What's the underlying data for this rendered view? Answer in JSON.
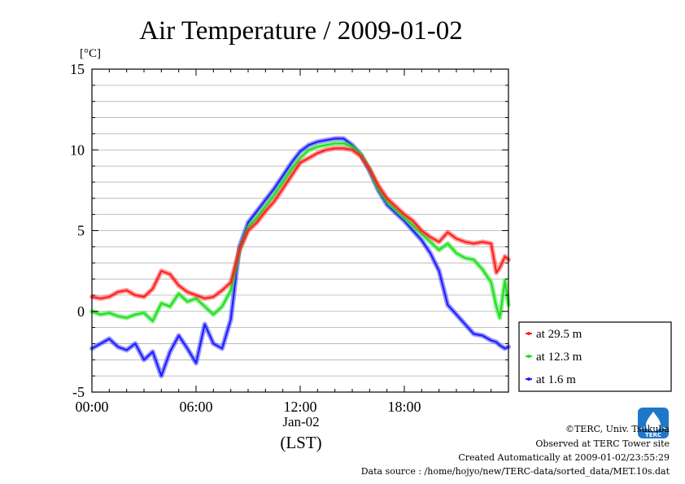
{
  "colors": {
    "red": "#ff2020",
    "green": "#20e020",
    "blue": "#2020ff",
    "grid": "#b0b0b0",
    "logo": "#1e78c8"
  },
  "chart_data": {
    "type": "line",
    "title": "Air Temperature / 2009-01-02",
    "ylabel": "[°C]",
    "xlabel": "(LST)",
    "date_label": "Jan-02",
    "ylim": [
      -5,
      15
    ],
    "xlim": [
      0,
      24
    ],
    "y_ticks": [
      -5,
      0,
      5,
      10,
      15
    ],
    "y_tick_labels": [
      "-5",
      "0",
      "5",
      "10",
      "15"
    ],
    "x_ticks": [
      0,
      6,
      12,
      18
    ],
    "x_tick_labels": [
      "00:00",
      "06:00",
      "12:00",
      "18:00"
    ],
    "grid": true,
    "legend_position": "right",
    "series": [
      {
        "name": "at 29.5 m",
        "color": "#ff2020",
        "x": [
          0,
          0.5,
          1,
          1.5,
          2,
          2.5,
          3,
          3.5,
          4,
          4.5,
          5,
          5.5,
          6,
          6.5,
          7,
          7.5,
          8,
          8.5,
          9,
          9.5,
          10,
          10.5,
          11,
          11.5,
          12,
          12.5,
          13,
          13.5,
          14,
          14.5,
          15,
          15.5,
          16,
          16.5,
          17,
          17.5,
          18,
          18.5,
          19,
          19.5,
          20,
          20.5,
          21,
          21.5,
          22,
          22.5,
          23,
          23.3,
          23.5,
          23.8,
          24
        ],
        "y": [
          0.9,
          0.8,
          0.9,
          1.2,
          1.3,
          1.0,
          0.9,
          1.4,
          2.5,
          2.3,
          1.6,
          1.2,
          1.0,
          0.8,
          0.9,
          1.3,
          1.8,
          3.8,
          5.0,
          5.5,
          6.2,
          6.8,
          7.6,
          8.4,
          9.2,
          9.5,
          9.8,
          10.0,
          10.1,
          10.1,
          10.0,
          9.6,
          8.8,
          7.8,
          7.0,
          6.5,
          6.0,
          5.6,
          5.0,
          4.6,
          4.3,
          4.9,
          4.5,
          4.3,
          4.2,
          4.3,
          4.2,
          2.4,
          2.7,
          3.4,
          3.2
        ]
      },
      {
        "name": "at 12.3 m",
        "color": "#20e020",
        "x": [
          0,
          0.5,
          1,
          1.5,
          2,
          2.5,
          3,
          3.5,
          4,
          4.5,
          5,
          5.5,
          6,
          6.5,
          7,
          7.5,
          8,
          8.5,
          9,
          9.5,
          10,
          10.5,
          11,
          11.5,
          12,
          12.5,
          13,
          13.5,
          14,
          14.5,
          15,
          15.5,
          16,
          16.5,
          17,
          17.5,
          18,
          18.5,
          19,
          19.5,
          20,
          20.5,
          21,
          21.5,
          22,
          22.5,
          23,
          23.3,
          23.5,
          23.8,
          24
        ],
        "y": [
          0.0,
          -0.2,
          -0.1,
          -0.3,
          -0.4,
          -0.2,
          -0.1,
          -0.6,
          0.5,
          0.3,
          1.1,
          0.6,
          0.8,
          0.3,
          -0.2,
          0.3,
          1.3,
          3.8,
          5.2,
          5.8,
          6.5,
          7.2,
          8.0,
          8.8,
          9.5,
          10.0,
          10.2,
          10.3,
          10.4,
          10.4,
          10.2,
          9.7,
          8.8,
          7.6,
          6.8,
          6.3,
          5.8,
          5.3,
          4.8,
          4.3,
          3.8,
          4.2,
          3.6,
          3.3,
          3.2,
          2.6,
          1.8,
          0.3,
          -0.4,
          1.9,
          0.4
        ]
      },
      {
        "name": "at 1.6 m",
        "color": "#2020ff",
        "x": [
          0,
          0.5,
          1,
          1.5,
          2,
          2.5,
          3,
          3.5,
          4,
          4.5,
          5,
          5.5,
          6,
          6.5,
          7,
          7.5,
          8,
          8.5,
          9,
          9.5,
          10,
          10.5,
          11,
          11.5,
          12,
          12.5,
          13,
          13.5,
          14,
          14.5,
          15,
          15.5,
          16,
          16.5,
          17,
          17.5,
          18,
          18.5,
          19,
          19.5,
          20,
          20.5,
          21,
          21.5,
          22,
          22.5,
          23,
          23.3,
          23.5,
          23.8,
          24
        ],
        "y": [
          -2.3,
          -2.0,
          -1.7,
          -2.2,
          -2.4,
          -2.0,
          -3.0,
          -2.5,
          -4.0,
          -2.5,
          -1.5,
          -2.3,
          -3.2,
          -0.8,
          -2.0,
          -2.3,
          -0.5,
          4.0,
          5.5,
          6.2,
          6.9,
          7.6,
          8.4,
          9.2,
          9.9,
          10.3,
          10.5,
          10.6,
          10.7,
          10.7,
          10.3,
          9.7,
          8.7,
          7.5,
          6.6,
          6.1,
          5.6,
          5.0,
          4.4,
          3.6,
          2.5,
          0.4,
          -0.2,
          -0.8,
          -1.4,
          -1.5,
          -1.8,
          -1.9,
          -2.1,
          -2.3,
          -2.2
        ]
      }
    ]
  },
  "credits": {
    "line1": "©TERC, Univ. Tsukuba",
    "line2": "Observed at TERC Tower site",
    "line3": "Created Automatically at 2009-01-02/23:55:29",
    "line4": "Data source : /home/hojyo/new/TERC-data/sorted_data/MET.10s.dat",
    "logo_text": "TERC"
  }
}
